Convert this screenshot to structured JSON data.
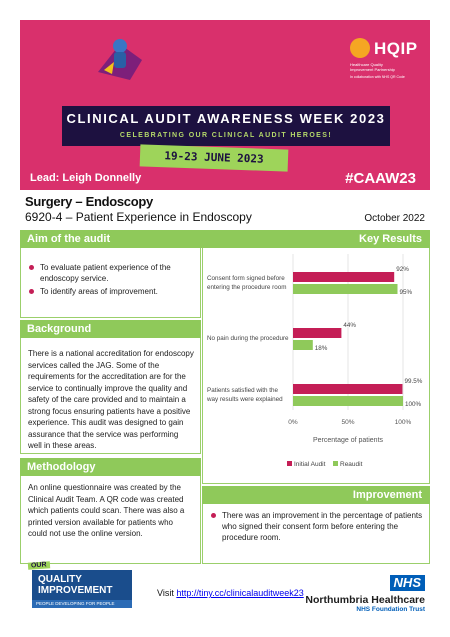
{
  "banner": {
    "hqip_name": "HQIP",
    "hqip_sub": "Healthcare Quality\nImprovement Partnership",
    "hqip_collab": "In collaboration with NHS QR Code",
    "title": "CLINICAL AUDIT AWARENESS WEEK 2023",
    "subtitle": "CELEBRATING OUR CLINICAL AUDIT HEROES!",
    "dates": "19-23 JUNE 2023",
    "hashtag": "#CAAW23",
    "lead": "Lead: Leigh Donnelly",
    "accent": "#d9306c",
    "navy": "#1d1140",
    "green": "#9ed45a"
  },
  "heading": {
    "line1": "Surgery – Endoscopy",
    "line2": "6920-4 – Patient Experience in Endoscopy",
    "date": "October 2022"
  },
  "sections": {
    "aim": {
      "title": "Aim of the audit",
      "bullets": [
        "To evaluate patient experience of the endoscopy service.",
        "To identify areas of improvement."
      ]
    },
    "key_results": {
      "title": "Key Results"
    },
    "background": {
      "title": "Background",
      "text": "There is a national accreditation for endoscopy services called the JAG. Some of the requirements for the accreditation are for the service to continually improve the quality and safety of the care provided and to maintain a strong focus ensuring patients have a positive experience. This audit was designed to gain assurance that the service was performing well in these areas."
    },
    "methodology": {
      "title": "Methodology",
      "text": "An online questionnaire was created by the Clinical Audit Team. A QR code was created which patients could scan. There was also a printed version available for patients who could not use the online version."
    },
    "improvement": {
      "title": "Improvement",
      "bullets": [
        "There was an improvement in the percentage of patients who signed their consent form before entering the procedure room."
      ]
    }
  },
  "chart_data": {
    "type": "bar",
    "orientation": "horizontal",
    "categories": [
      "Consent form signed before entering the procedure room",
      "No pain during the procedure",
      "Patients satisfied with the way results were explained"
    ],
    "category_lines": [
      [
        "Consent form signed before",
        "entering the procedure room"
      ],
      [
        "No pain during the procedure"
      ],
      [
        "Patients satisfied with the",
        "way results were explained"
      ]
    ],
    "series": [
      {
        "name": "Initial Audit",
        "values": [
          92,
          44,
          99.5
        ],
        "labels": [
          "92%",
          "44%",
          "99.5%"
        ],
        "color": "#c41e56"
      },
      {
        "name": "Reaudit",
        "values": [
          95,
          18,
          100
        ],
        "labels": [
          "95%",
          "18%",
          "100%"
        ],
        "color": "#8fc95a"
      }
    ],
    "xlabel": "Percentage of patients",
    "x_ticks": [
      "0%",
      "50%",
      "100%"
    ],
    "xlim": [
      0,
      100
    ],
    "grid": true,
    "legend": "bottom"
  },
  "footer": {
    "qi_our": "OUR",
    "qi_title": "QUALITY\nIMPROVEMENT",
    "qi_tag": "PEOPLE DEVELOPING FOR PEOPLE",
    "visit_text": "Visit ",
    "visit_link": "http://tiny.cc/clinicalauditweek23",
    "nhs_logo": "NHS",
    "org": "Northumbria Healthcare",
    "trust": "NHS Foundation Trust"
  }
}
